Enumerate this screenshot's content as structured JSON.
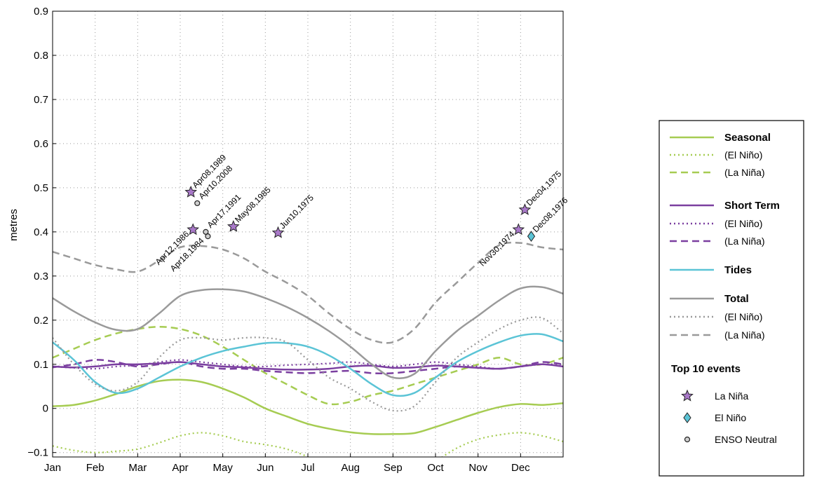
{
  "chart_data": {
    "type": "line",
    "ylabel": "metres",
    "xlabel": "",
    "ylim": [
      -0.11,
      0.9
    ],
    "yticks": [
      -0.1,
      0,
      0.1,
      0.2,
      0.3,
      0.4,
      0.5,
      0.6,
      0.7,
      0.8,
      0.9
    ],
    "ytick_labels": [
      "−0.1",
      "0",
      "0.1",
      "0.2",
      "0.3",
      "0.4",
      "0.5",
      "0.6",
      "0.7",
      "0.8",
      "0.9"
    ],
    "xlim": [
      0,
      12
    ],
    "x_categories": [
      "Jan",
      "Feb",
      "Mar",
      "Apr",
      "May",
      "Jun",
      "Jul",
      "Aug",
      "Sep",
      "Oct",
      "Nov",
      "Dec"
    ],
    "x_units": "month (0 = start of Jan)",
    "grid": true,
    "legend_position": "right",
    "series": [
      {
        "name": "Seasonal",
        "style": "solid",
        "color": "#a6cc52",
        "x": [
          0,
          0.5,
          1,
          1.5,
          2,
          2.5,
          3,
          3.5,
          4,
          4.5,
          5,
          5.5,
          6,
          6.5,
          7,
          7.5,
          8,
          8.5,
          9,
          9.5,
          10,
          10.5,
          11,
          11.5,
          12
        ],
        "y": [
          0.005,
          0.008,
          0.018,
          0.033,
          0.05,
          0.062,
          0.065,
          0.06,
          0.045,
          0.025,
          0.0,
          -0.018,
          -0.035,
          -0.046,
          -0.054,
          -0.058,
          -0.058,
          -0.056,
          -0.042,
          -0.026,
          -0.01,
          0.003,
          0.01,
          0.008,
          0.012
        ]
      },
      {
        "name": "(El Niño)",
        "style": "dotted",
        "color": "#a6cc52",
        "x": [
          0,
          0.5,
          1,
          1.5,
          2,
          2.5,
          3,
          3.5,
          4,
          4.5,
          5,
          5.5,
          6,
          6.5,
          7,
          7.5,
          8,
          8.5,
          9,
          9.5,
          10,
          10.5,
          11,
          11.5,
          12
        ],
        "y": [
          -0.085,
          -0.095,
          -0.1,
          -0.097,
          -0.092,
          -0.078,
          -0.062,
          -0.055,
          -0.062,
          -0.075,
          -0.082,
          -0.092,
          -0.11,
          -0.14,
          -0.16,
          -0.17,
          -0.17,
          -0.15,
          -0.12,
          -0.09,
          -0.07,
          -0.06,
          -0.055,
          -0.062,
          -0.075
        ]
      },
      {
        "name": "(La Niña)",
        "style": "dashed",
        "color": "#a6cc52",
        "x": [
          0,
          0.5,
          1,
          1.5,
          2,
          2.5,
          3,
          3.5,
          4,
          4.5,
          5,
          5.5,
          6,
          6.5,
          7,
          7.5,
          8,
          8.5,
          9,
          9.5,
          10,
          10.5,
          11,
          11.5,
          12
        ],
        "y": [
          0.115,
          0.135,
          0.155,
          0.17,
          0.18,
          0.185,
          0.18,
          0.165,
          0.14,
          0.11,
          0.08,
          0.055,
          0.03,
          0.01,
          0.015,
          0.03,
          0.04,
          0.055,
          0.07,
          0.085,
          0.1,
          0.115,
          0.1,
          0.1,
          0.115
        ]
      },
      {
        "name": "Short Term",
        "style": "solid",
        "color": "#7b3fa0",
        "x": [
          0,
          0.5,
          1,
          1.5,
          2,
          2.5,
          3,
          3.5,
          4,
          4.5,
          5,
          5.5,
          6,
          6.5,
          7,
          7.5,
          8,
          8.5,
          9,
          9.5,
          10,
          10.5,
          11,
          11.5,
          12
        ],
        "y": [
          0.095,
          0.093,
          0.095,
          0.1,
          0.1,
          0.102,
          0.105,
          0.1,
          0.095,
          0.093,
          0.09,
          0.088,
          0.088,
          0.09,
          0.095,
          0.097,
          0.092,
          0.093,
          0.097,
          0.095,
          0.092,
          0.09,
          0.095,
          0.1,
          0.095
        ]
      },
      {
        "name": "(El Niño)",
        "style": "dotted",
        "color": "#7b3fa0",
        "x": [
          0,
          0.5,
          1,
          1.5,
          2,
          2.5,
          3,
          3.5,
          4,
          4.5,
          5,
          5.5,
          6,
          6.5,
          7,
          7.5,
          8,
          8.5,
          9,
          9.5,
          10,
          10.5,
          11,
          11.5,
          12
        ],
        "y": [
          0.095,
          0.092,
          0.09,
          0.095,
          0.098,
          0.105,
          0.11,
          0.105,
          0.1,
          0.095,
          0.095,
          0.098,
          0.1,
          0.102,
          0.105,
          0.1,
          0.095,
          0.1,
          0.105,
          0.1,
          0.095,
          0.09,
          0.095,
          0.1,
          0.1
        ]
      },
      {
        "name": "(La Niña)",
        "style": "dashed",
        "color": "#7b3fa0",
        "x": [
          0,
          0.5,
          1,
          1.5,
          2,
          2.5,
          3,
          3.5,
          4,
          4.5,
          5,
          5.5,
          6,
          6.5,
          7,
          7.5,
          8,
          8.5,
          9,
          9.5,
          10,
          10.5,
          11,
          11.5,
          12
        ],
        "y": [
          0.093,
          0.1,
          0.11,
          0.105,
          0.095,
          0.1,
          0.105,
          0.095,
          0.09,
          0.09,
          0.085,
          0.082,
          0.08,
          0.083,
          0.085,
          0.08,
          0.08,
          0.085,
          0.09,
          0.095,
          0.092,
          0.09,
          0.095,
          0.105,
          0.1
        ]
      },
      {
        "name": "Tides",
        "style": "solid",
        "color": "#5bc4d6",
        "x": [
          0,
          0.5,
          1,
          1.5,
          2,
          2.5,
          3,
          3.5,
          4,
          4.5,
          5,
          5.5,
          6,
          6.5,
          7,
          7.5,
          8,
          8.5,
          9,
          9.5,
          10,
          10.5,
          11,
          11.5,
          12
        ],
        "y": [
          0.15,
          0.11,
          0.06,
          0.035,
          0.045,
          0.07,
          0.095,
          0.115,
          0.13,
          0.14,
          0.148,
          0.148,
          0.14,
          0.12,
          0.09,
          0.055,
          0.03,
          0.035,
          0.07,
          0.105,
          0.13,
          0.15,
          0.165,
          0.168,
          0.152
        ]
      },
      {
        "name": "Total",
        "style": "solid",
        "color": "#9a9a9a",
        "x": [
          0,
          0.5,
          1,
          1.5,
          2,
          2.5,
          3,
          3.5,
          4,
          4.5,
          5,
          5.5,
          6,
          6.5,
          7,
          7.5,
          8,
          8.5,
          9,
          9.5,
          10,
          10.5,
          11,
          11.5,
          12
        ],
        "y": [
          0.25,
          0.22,
          0.195,
          0.178,
          0.18,
          0.215,
          0.255,
          0.268,
          0.27,
          0.265,
          0.25,
          0.23,
          0.205,
          0.175,
          0.14,
          0.1,
          0.07,
          0.078,
          0.13,
          0.175,
          0.21,
          0.245,
          0.272,
          0.275,
          0.26
        ]
      },
      {
        "name": "(El Niño)",
        "style": "dotted",
        "color": "#9a9a9a",
        "x": [
          0,
          0.5,
          1,
          1.5,
          2,
          2.5,
          3,
          3.5,
          4,
          4.5,
          5,
          5.5,
          6,
          6.5,
          7,
          7.5,
          8,
          8.5,
          9,
          9.5,
          10,
          10.5,
          11,
          11.5,
          12
        ],
        "y": [
          0.16,
          0.1,
          0.055,
          0.04,
          0.06,
          0.115,
          0.155,
          0.16,
          0.155,
          0.16,
          0.16,
          0.15,
          0.11,
          0.07,
          0.045,
          0.015,
          -0.005,
          0.005,
          0.06,
          0.115,
          0.15,
          0.18,
          0.2,
          0.205,
          0.17
        ]
      },
      {
        "name": "(La Niña)",
        "style": "dashed",
        "color": "#9a9a9a",
        "x": [
          0,
          0.5,
          1,
          1.5,
          2,
          2.5,
          3,
          3.5,
          4,
          4.5,
          5,
          5.5,
          6,
          6.5,
          7,
          7.5,
          8,
          8.5,
          9,
          9.5,
          10,
          10.5,
          11,
          11.5,
          12
        ],
        "y": [
          0.355,
          0.34,
          0.325,
          0.315,
          0.31,
          0.335,
          0.365,
          0.368,
          0.36,
          0.34,
          0.31,
          0.285,
          0.255,
          0.215,
          0.18,
          0.155,
          0.15,
          0.18,
          0.24,
          0.285,
          0.33,
          0.37,
          0.375,
          0.365,
          0.36
        ]
      }
    ],
    "events": [
      {
        "label": "Apr08,1989",
        "type": "La Niña",
        "x": 3.25,
        "y": 0.49
      },
      {
        "label": "Apr12,1986",
        "type": "La Niña",
        "x": 3.3,
        "y": 0.405
      },
      {
        "label": "Apr10,2008",
        "type": "ENSO Neutral",
        "x": 3.4,
        "y": 0.465
      },
      {
        "label": "Apr17,1991",
        "type": "ENSO Neutral",
        "x": 3.6,
        "y": 0.4
      },
      {
        "label": "Apr18,1984",
        "type": "ENSO Neutral",
        "x": 3.65,
        "y": 0.39
      },
      {
        "label": "May08,1985",
        "type": "La Niña",
        "x": 4.25,
        "y": 0.412
      },
      {
        "label": "Jun10,1975",
        "type": "La Niña",
        "x": 5.3,
        "y": 0.398
      },
      {
        "label": "Dec04,1975",
        "type": "La Niña",
        "x": 11.1,
        "y": 0.45
      },
      {
        "label": "Nov30,1974",
        "type": "La Niña",
        "x": 10.95,
        "y": 0.405
      },
      {
        "label": "Dec08,1976",
        "type": "El Niño",
        "x": 11.25,
        "y": 0.39
      }
    ],
    "legend": {
      "entries": [
        {
          "label": "Seasonal",
          "style": "solid",
          "color": "#a6cc52",
          "bold": true
        },
        {
          "label": "(El Niño)",
          "style": "dotted",
          "color": "#a6cc52",
          "bold": false
        },
        {
          "label": "(La Niña)",
          "style": "dashed",
          "color": "#a6cc52",
          "bold": false
        },
        {
          "label": "Short Term",
          "style": "solid",
          "color": "#7b3fa0",
          "bold": true
        },
        {
          "label": "(El Niño)",
          "style": "dotted",
          "color": "#7b3fa0",
          "bold": false
        },
        {
          "label": "(La Niña)",
          "style": "dashed",
          "color": "#7b3fa0",
          "bold": false
        },
        {
          "label": "Tides",
          "style": "solid",
          "color": "#5bc4d6",
          "bold": true
        },
        {
          "label": "Total",
          "style": "solid",
          "color": "#9a9a9a",
          "bold": true
        },
        {
          "label": "(El Niño)",
          "style": "dotted",
          "color": "#9a9a9a",
          "bold": false
        },
        {
          "label": "(La Niña)",
          "style": "dashed",
          "color": "#9a9a9a",
          "bold": false
        }
      ],
      "events_title": "Top 10 events",
      "event_entries": [
        {
          "label": "La Niña",
          "marker": "star",
          "color": "#a979c9"
        },
        {
          "label": "El Niño",
          "marker": "diamond",
          "color": "#5bc4d6"
        },
        {
          "label": "ENSO Neutral",
          "marker": "circle",
          "color": "#cfcfcf"
        }
      ]
    }
  }
}
